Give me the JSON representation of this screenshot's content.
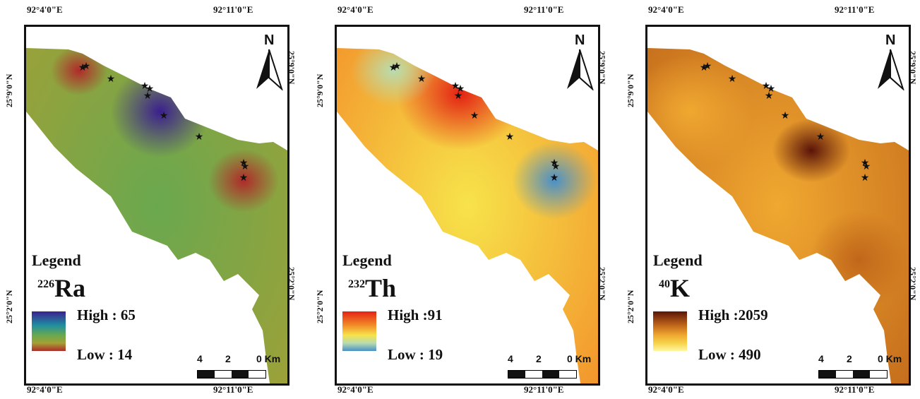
{
  "coords": {
    "lon_left": "92°4'0\"E",
    "lon_right": "92°11'0\"E",
    "lat_upper": "25°9'0\"N",
    "lat_lower": "25°2'0\"N"
  },
  "legend_title": "Legend",
  "north_label": "N",
  "scale": {
    "labels": [
      "4",
      "2",
      "0 Km"
    ]
  },
  "star_icon": "star-icon",
  "panels": [
    {
      "mass_number": "226",
      "element": "Ra",
      "high_label": "High : 65",
      "low_label": "Low : 14",
      "high_value": 65,
      "low_value": 14,
      "colors": {
        "high": "#3b1f8f",
        "mid_high": "#1f8fa0",
        "mid": "#6aa84f",
        "mid_low": "#a3a035",
        "low": "#b02a2a"
      }
    },
    {
      "mass_number": "232",
      "element": "Th",
      "high_label": "High :91",
      "low_label": "Low : 19",
      "high_value": 91,
      "low_value": 19,
      "colors": {
        "high": "#e32214",
        "mid_high": "#f28c28",
        "mid": "#f7e34a",
        "mid_low": "#b8dcb0",
        "low": "#4a90c8"
      }
    },
    {
      "mass_number": "40",
      "element": "K",
      "high_label": "High :2059",
      "low_label": "Low : 490",
      "high_value": 2059,
      "low_value": 490,
      "colors": {
        "high": "#5a1408",
        "mid_high": "#c0661a",
        "mid": "#f0a830",
        "mid_low": "#f7d24a",
        "low": "#fff7a0"
      }
    }
  ]
}
